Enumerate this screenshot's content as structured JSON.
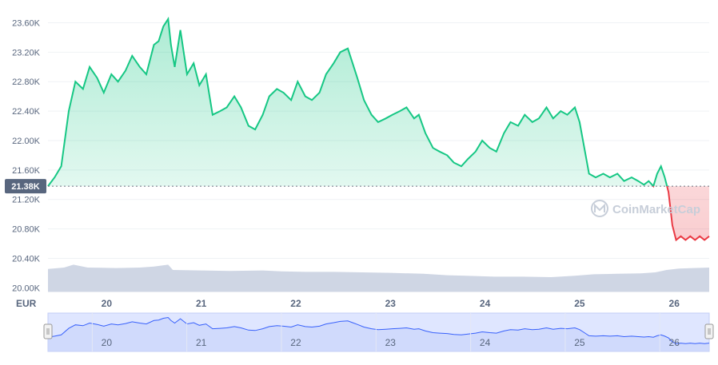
{
  "chart_data": {
    "type": "area",
    "currency_label": "EUR",
    "watermark": "CoinMarketCap",
    "current_price_label": "21.38K",
    "baseline_value": 21380,
    "y_ticks": [
      "23.60K",
      "23.20K",
      "22.80K",
      "22.40K",
      "22.00K",
      "21.60K",
      "21.20K",
      "20.80K",
      "20.40K",
      "20.00K"
    ],
    "y_tick_values": [
      23600,
      23200,
      22800,
      22400,
      22000,
      21600,
      21200,
      20800,
      20400,
      20000
    ],
    "ylim": [
      19950,
      23800
    ],
    "x_ticks": [
      "20",
      "21",
      "22",
      "23",
      "24",
      "25",
      "26"
    ],
    "x_tick_values": [
      20,
      21,
      22,
      23,
      24,
      25,
      26
    ],
    "xlim": [
      19.38,
      26.37
    ],
    "colors": {
      "up": "#16c784",
      "down": "#ea3943",
      "volume": "#cfd6e4",
      "navigator_fill": "#dfe6ff",
      "navigator_line": "#3861fb",
      "grid": "#eff2f5",
      "axis_text": "#58667e"
    },
    "series": [
      {
        "values": [
          [
            19.38,
            21380
          ],
          [
            19.45,
            21500
          ],
          [
            19.52,
            21650
          ],
          [
            19.6,
            22400
          ],
          [
            19.67,
            22800
          ],
          [
            19.75,
            22700
          ],
          [
            19.82,
            23000
          ],
          [
            19.9,
            22850
          ],
          [
            19.97,
            22650
          ],
          [
            20.05,
            22900
          ],
          [
            20.12,
            22800
          ],
          [
            20.2,
            22950
          ],
          [
            20.27,
            23150
          ],
          [
            20.35,
            23000
          ],
          [
            20.42,
            22900
          ],
          [
            20.5,
            23300
          ],
          [
            20.55,
            23350
          ],
          [
            20.6,
            23550
          ],
          [
            20.65,
            23650
          ],
          [
            20.68,
            23300
          ],
          [
            20.72,
            23000
          ],
          [
            20.78,
            23500
          ],
          [
            20.85,
            22900
          ],
          [
            20.92,
            23050
          ],
          [
            20.98,
            22750
          ],
          [
            21.05,
            22900
          ],
          [
            21.12,
            22350
          ],
          [
            21.2,
            22400
          ],
          [
            21.27,
            22450
          ],
          [
            21.35,
            22600
          ],
          [
            21.42,
            22450
          ],
          [
            21.5,
            22200
          ],
          [
            21.57,
            22150
          ],
          [
            21.65,
            22350
          ],
          [
            21.72,
            22600
          ],
          [
            21.8,
            22700
          ],
          [
            21.87,
            22650
          ],
          [
            21.95,
            22550
          ],
          [
            22.02,
            22800
          ],
          [
            22.1,
            22600
          ],
          [
            22.17,
            22550
          ],
          [
            22.25,
            22650
          ],
          [
            22.32,
            22900
          ],
          [
            22.4,
            23050
          ],
          [
            22.47,
            23200
          ],
          [
            22.55,
            23250
          ],
          [
            22.6,
            23050
          ],
          [
            22.65,
            22850
          ],
          [
            22.72,
            22550
          ],
          [
            22.8,
            22350
          ],
          [
            22.87,
            22250
          ],
          [
            22.95,
            22300
          ],
          [
            23.02,
            22350
          ],
          [
            23.1,
            22400
          ],
          [
            23.17,
            22450
          ],
          [
            23.25,
            22300
          ],
          [
            23.3,
            22350
          ],
          [
            23.37,
            22100
          ],
          [
            23.45,
            21900
          ],
          [
            23.52,
            21850
          ],
          [
            23.6,
            21800
          ],
          [
            23.67,
            21700
          ],
          [
            23.75,
            21650
          ],
          [
            23.82,
            21750
          ],
          [
            23.9,
            21850
          ],
          [
            23.97,
            22000
          ],
          [
            24.05,
            21900
          ],
          [
            24.12,
            21850
          ],
          [
            24.2,
            22100
          ],
          [
            24.27,
            22250
          ],
          [
            24.35,
            22200
          ],
          [
            24.42,
            22350
          ],
          [
            24.5,
            22250
          ],
          [
            24.57,
            22300
          ],
          [
            24.65,
            22450
          ],
          [
            24.72,
            22300
          ],
          [
            24.8,
            22400
          ],
          [
            24.87,
            22350
          ],
          [
            24.95,
            22450
          ],
          [
            25.0,
            22250
          ],
          [
            25.05,
            21900
          ],
          [
            25.1,
            21550
          ],
          [
            25.17,
            21500
          ],
          [
            25.25,
            21550
          ],
          [
            25.32,
            21500
          ],
          [
            25.4,
            21550
          ],
          [
            25.47,
            21450
          ],
          [
            25.55,
            21500
          ],
          [
            25.62,
            21450
          ],
          [
            25.68,
            21400
          ],
          [
            25.73,
            21450
          ],
          [
            25.78,
            21380
          ],
          [
            25.82,
            21550
          ],
          [
            25.86,
            21650
          ],
          [
            25.9,
            21500
          ],
          [
            25.94,
            21300
          ],
          [
            25.98,
            20850
          ],
          [
            26.02,
            20650
          ],
          [
            26.07,
            20700
          ],
          [
            26.12,
            20650
          ],
          [
            26.17,
            20700
          ],
          [
            26.22,
            20650
          ],
          [
            26.27,
            20700
          ],
          [
            26.32,
            20650
          ],
          [
            26.37,
            20700
          ]
        ]
      }
    ],
    "volume": [
      [
        19.38,
        0.47
      ],
      [
        19.55,
        0.5
      ],
      [
        19.65,
        0.56
      ],
      [
        19.8,
        0.5
      ],
      [
        20.1,
        0.49
      ],
      [
        20.35,
        0.5
      ],
      [
        20.5,
        0.52
      ],
      [
        20.65,
        0.56
      ],
      [
        20.7,
        0.45
      ],
      [
        21.0,
        0.44
      ],
      [
        21.3,
        0.43
      ],
      [
        21.65,
        0.44
      ],
      [
        21.85,
        0.42
      ],
      [
        22.1,
        0.41
      ],
      [
        22.4,
        0.41
      ],
      [
        22.7,
        0.4
      ],
      [
        23.0,
        0.39
      ],
      [
        23.35,
        0.37
      ],
      [
        23.6,
        0.34
      ],
      [
        23.8,
        0.33
      ],
      [
        24.1,
        0.31
      ],
      [
        24.4,
        0.31
      ],
      [
        24.7,
        0.3
      ],
      [
        24.95,
        0.33
      ],
      [
        25.15,
        0.36
      ],
      [
        25.4,
        0.37
      ],
      [
        25.65,
        0.38
      ],
      [
        25.8,
        0.4
      ],
      [
        25.92,
        0.45
      ],
      [
        26.05,
        0.48
      ],
      [
        26.2,
        0.49
      ],
      [
        26.37,
        0.5
      ]
    ]
  }
}
